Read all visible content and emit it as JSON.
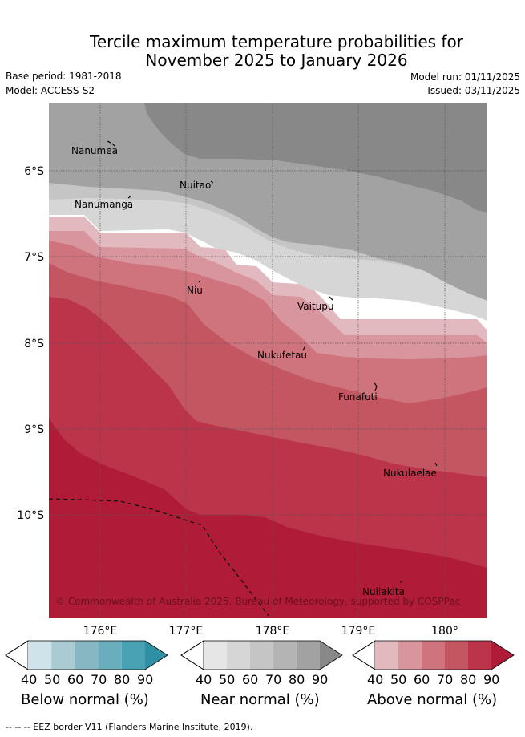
{
  "title_line1": "Tercile maximum temperature probabilities for",
  "title_line2": "November 2025 to January 2026",
  "meta": {
    "base_period": "Base period: 1981-2018",
    "model": "Model: ACCESS-S2",
    "model_run": "Model run: 01/11/2025",
    "issued": "Issued: 03/11/2025"
  },
  "axes": {
    "lat_labels": [
      "6°S",
      "7°S",
      "8°S",
      "9°S",
      "10°S"
    ],
    "lon_labels": [
      "176°E",
      "177°E",
      "178°E",
      "179°E",
      "180°"
    ]
  },
  "places": {
    "nanumea": "Nanumea",
    "nuitao": "Nuitao",
    "nanumanga": "Nanumanga",
    "niu": "Niu",
    "vaitupu": "Vaitupu",
    "nukufetau": "Nukufetau",
    "funafuti": "Funafuti",
    "nukulaelae": "Nukulaelae",
    "nuilakita": "Nuilakita"
  },
  "copyright": "© Commonwealth of Australia 2025, Bureau of Meteorology, supported by COSPPac",
  "colorbars": [
    {
      "label": "Below normal (%)",
      "ticks": [
        "40",
        "50",
        "60",
        "70",
        "80",
        "90"
      ],
      "colors": [
        "#cfe4ea",
        "#a9cbd1",
        "#88b7c4",
        "#6aaebd",
        "#48a2b3",
        "#2e8fa5"
      ]
    },
    {
      "label": "Near normal (%)",
      "ticks": [
        "40",
        "50",
        "60",
        "70",
        "80",
        "90"
      ],
      "colors": [
        "#e6e6e6",
        "#d6d6d6",
        "#c5c5c5",
        "#b4b4b4",
        "#a2a2a2",
        "#888888"
      ]
    },
    {
      "label": "Above normal (%)",
      "ticks": [
        "40",
        "50",
        "60",
        "70",
        "80",
        "90"
      ],
      "colors": [
        "#e3b9c0",
        "#d8959e",
        "#cf737d",
        "#c45662",
        "#bb3449",
        "#b01c38"
      ]
    }
  ],
  "footer": "--  --  -- EEZ border V11 (Flanders Marine Institute, 2019)."
}
